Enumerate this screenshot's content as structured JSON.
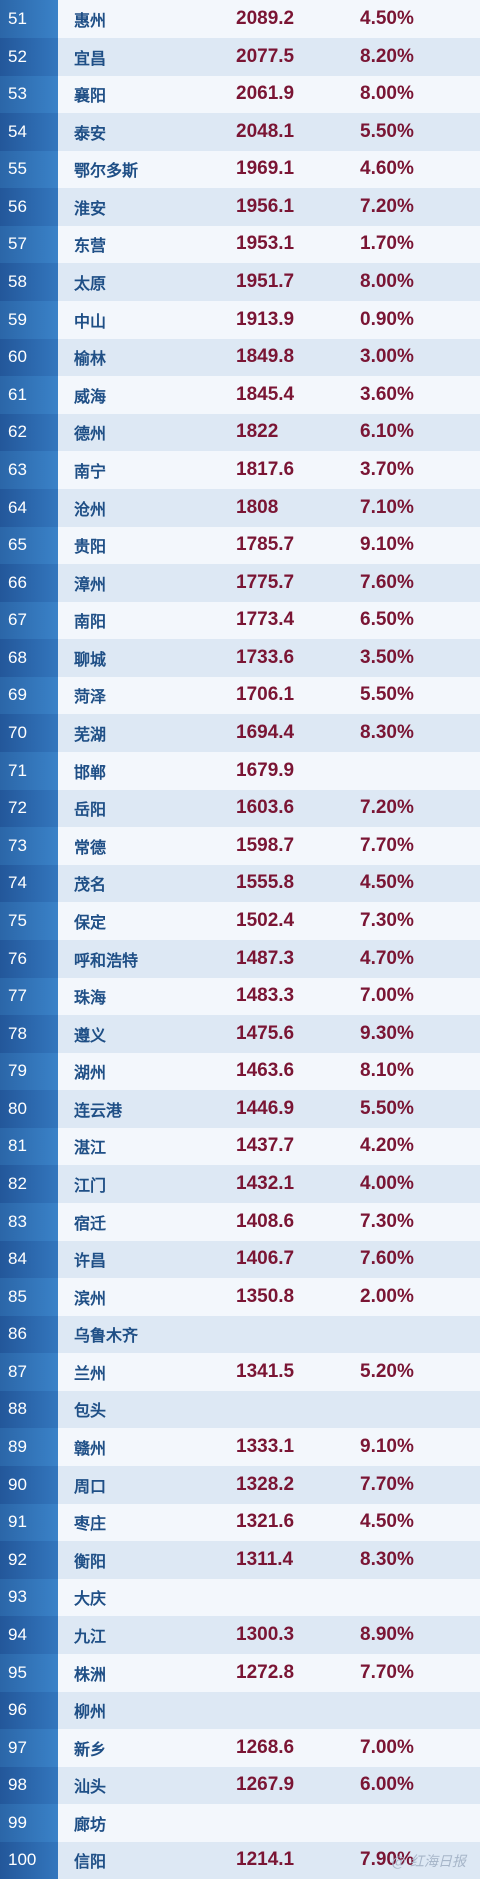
{
  "rows": [
    {
      "rank": "51",
      "city": "惠州",
      "gdp": "2089.2",
      "growth": "4.50%"
    },
    {
      "rank": "52",
      "city": "宜昌",
      "gdp": "2077.5",
      "growth": "8.20%"
    },
    {
      "rank": "53",
      "city": "襄阳",
      "gdp": "2061.9",
      "growth": "8.00%"
    },
    {
      "rank": "54",
      "city": "泰安",
      "gdp": "2048.1",
      "growth": "5.50%"
    },
    {
      "rank": "55",
      "city": "鄂尔多斯",
      "gdp": "1969.1",
      "growth": "4.60%"
    },
    {
      "rank": "56",
      "city": "淮安",
      "gdp": "1956.1",
      "growth": "7.20%"
    },
    {
      "rank": "57",
      "city": "东营",
      "gdp": "1953.1",
      "growth": "1.70%"
    },
    {
      "rank": "58",
      "city": "太原",
      "gdp": "1951.7",
      "growth": "8.00%"
    },
    {
      "rank": "59",
      "city": "中山",
      "gdp": "1913.9",
      "growth": "0.90%"
    },
    {
      "rank": "60",
      "city": "榆林",
      "gdp": "1849.8",
      "growth": "3.00%"
    },
    {
      "rank": "61",
      "city": "威海",
      "gdp": "1845.4",
      "growth": "3.60%"
    },
    {
      "rank": "62",
      "city": "德州",
      "gdp": "1822",
      "growth": "6.10%"
    },
    {
      "rank": "63",
      "city": "南宁",
      "gdp": "1817.6",
      "growth": "3.70%"
    },
    {
      "rank": "64",
      "city": "沧州",
      "gdp": "1808",
      "growth": "7.10%"
    },
    {
      "rank": "65",
      "city": "贵阳",
      "gdp": "1785.7",
      "growth": "9.10%"
    },
    {
      "rank": "66",
      "city": "漳州",
      "gdp": "1775.7",
      "growth": "7.60%"
    },
    {
      "rank": "67",
      "city": "南阳",
      "gdp": "1773.4",
      "growth": "6.50%"
    },
    {
      "rank": "68",
      "city": "聊城",
      "gdp": "1733.6",
      "growth": "3.50%"
    },
    {
      "rank": "69",
      "city": "菏泽",
      "gdp": "1706.1",
      "growth": "5.50%"
    },
    {
      "rank": "70",
      "city": "芜湖",
      "gdp": "1694.4",
      "growth": "8.30%"
    },
    {
      "rank": "71",
      "city": "邯郸",
      "gdp": "1679.9",
      "growth": ""
    },
    {
      "rank": "72",
      "city": "岳阳",
      "gdp": "1603.6",
      "growth": "7.20%"
    },
    {
      "rank": "73",
      "city": "常德",
      "gdp": "1598.7",
      "growth": "7.70%"
    },
    {
      "rank": "74",
      "city": "茂名",
      "gdp": "1555.8",
      "growth": "4.50%"
    },
    {
      "rank": "75",
      "city": "保定",
      "gdp": "1502.4",
      "growth": "7.30%"
    },
    {
      "rank": "76",
      "city": "呼和浩特",
      "gdp": "1487.3",
      "growth": "4.70%"
    },
    {
      "rank": "77",
      "city": "珠海",
      "gdp": "1483.3",
      "growth": "7.00%"
    },
    {
      "rank": "78",
      "city": "遵义",
      "gdp": "1475.6",
      "growth": "9.30%"
    },
    {
      "rank": "79",
      "city": "湖州",
      "gdp": "1463.6",
      "growth": "8.10%"
    },
    {
      "rank": "80",
      "city": "连云港",
      "gdp": "1446.9",
      "growth": "5.50%"
    },
    {
      "rank": "81",
      "city": "湛江",
      "gdp": "1437.7",
      "growth": "4.20%"
    },
    {
      "rank": "82",
      "city": "江门",
      "gdp": "1432.1",
      "growth": "4.00%"
    },
    {
      "rank": "83",
      "city": "宿迁",
      "gdp": "1408.6",
      "growth": "7.30%"
    },
    {
      "rank": "84",
      "city": "许昌",
      "gdp": "1406.7",
      "growth": "7.60%"
    },
    {
      "rank": "85",
      "city": "滨州",
      "gdp": "1350.8",
      "growth": "2.00%"
    },
    {
      "rank": "86",
      "city": "乌鲁木齐",
      "gdp": "",
      "growth": ""
    },
    {
      "rank": "87",
      "city": "兰州",
      "gdp": "1341.5",
      "growth": "5.20%"
    },
    {
      "rank": "88",
      "city": "包头",
      "gdp": "",
      "growth": ""
    },
    {
      "rank": "89",
      "city": "赣州",
      "gdp": "1333.1",
      "growth": "9.10%"
    },
    {
      "rank": "90",
      "city": "周口",
      "gdp": "1328.2",
      "growth": "7.70%"
    },
    {
      "rank": "91",
      "city": "枣庄",
      "gdp": "1321.6",
      "growth": "4.50%"
    },
    {
      "rank": "92",
      "city": "衡阳",
      "gdp": "1311.4",
      "growth": "8.30%"
    },
    {
      "rank": "93",
      "city": "大庆",
      "gdp": "",
      "growth": ""
    },
    {
      "rank": "94",
      "city": "九江",
      "gdp": "1300.3",
      "growth": "8.90%"
    },
    {
      "rank": "95",
      "city": "株洲",
      "gdp": "1272.8",
      "growth": "7.70%"
    },
    {
      "rank": "96",
      "city": "柳州",
      "gdp": "",
      "growth": ""
    },
    {
      "rank": "97",
      "city": "新乡",
      "gdp": "1268.6",
      "growth": "7.00%"
    },
    {
      "rank": "98",
      "city": "汕头",
      "gdp": "1267.9",
      "growth": "6.00%"
    },
    {
      "rank": "99",
      "city": "廊坊",
      "gdp": "",
      "growth": ""
    },
    {
      "rank": "100",
      "city": "信阳",
      "gdp": "1214.1",
      "growth": "7.90%"
    }
  ],
  "watermark": "@ 红海日报"
}
